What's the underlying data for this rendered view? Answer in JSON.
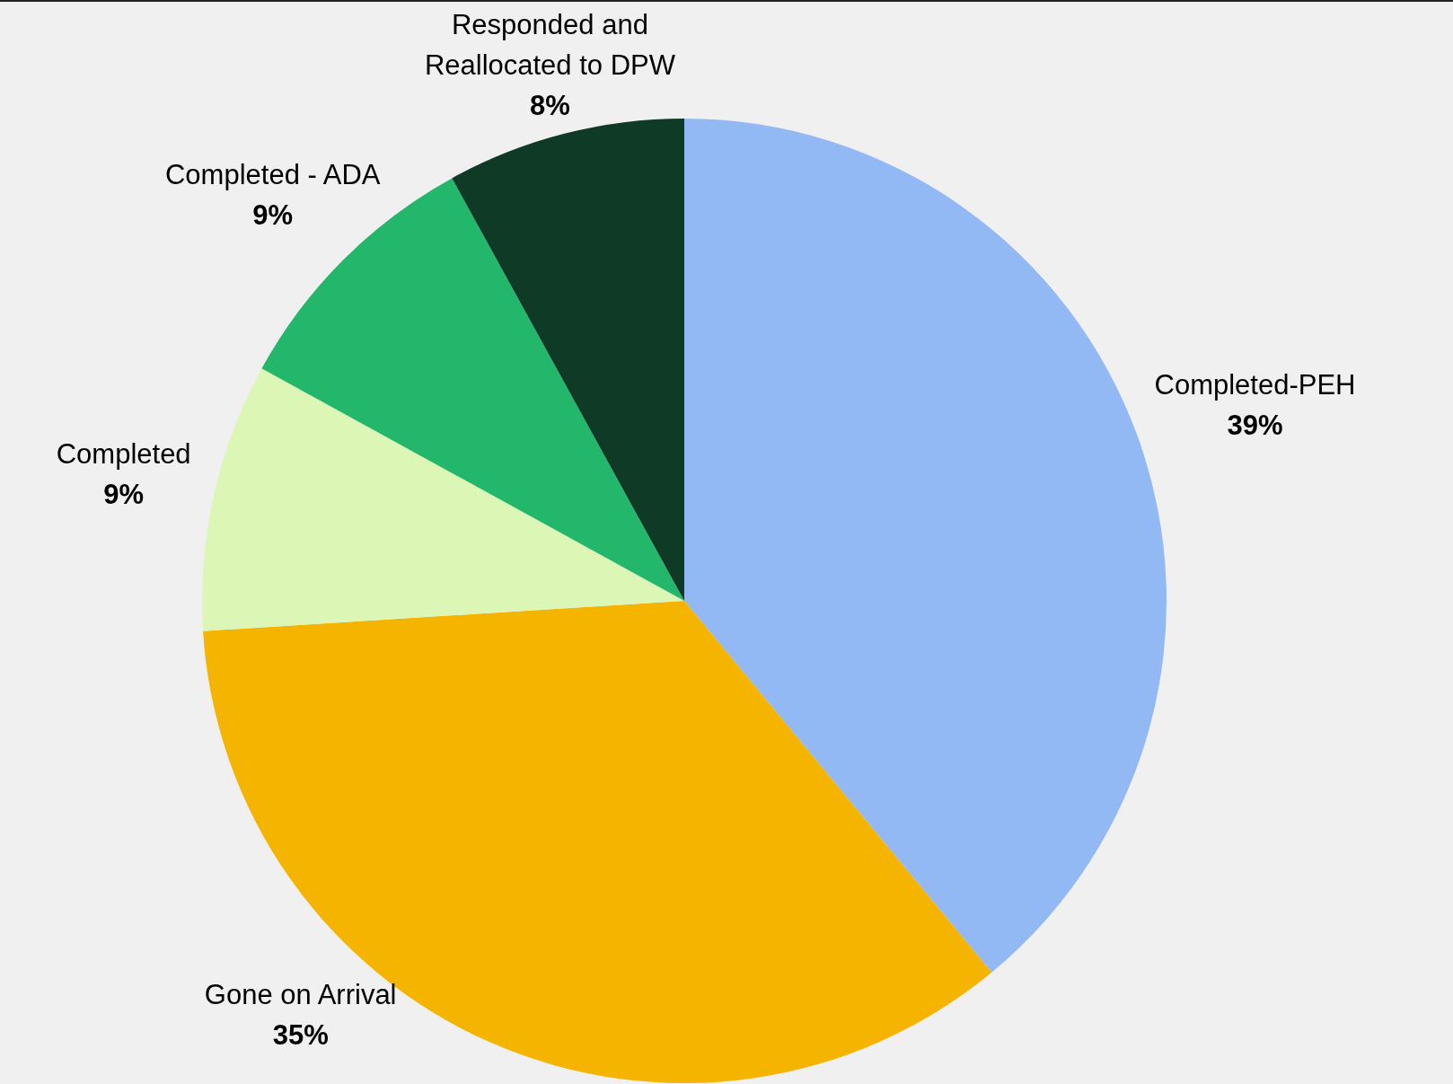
{
  "chart_data": {
    "type": "pie",
    "categories": [
      "Completed-PEH",
      "Gone on Arrival",
      "Completed",
      "Completed - ADA",
      "Responded and Reallocated to DPW"
    ],
    "values": [
      39,
      35,
      9,
      9,
      8
    ],
    "colors": [
      "#93b9f4",
      "#f5b400",
      "#dcf7b5",
      "#22b76a",
      "#0f3a25"
    ],
    "value_labels": [
      "39%",
      "35%",
      "9%",
      "9%",
      "8%"
    ],
    "legend": false
  }
}
